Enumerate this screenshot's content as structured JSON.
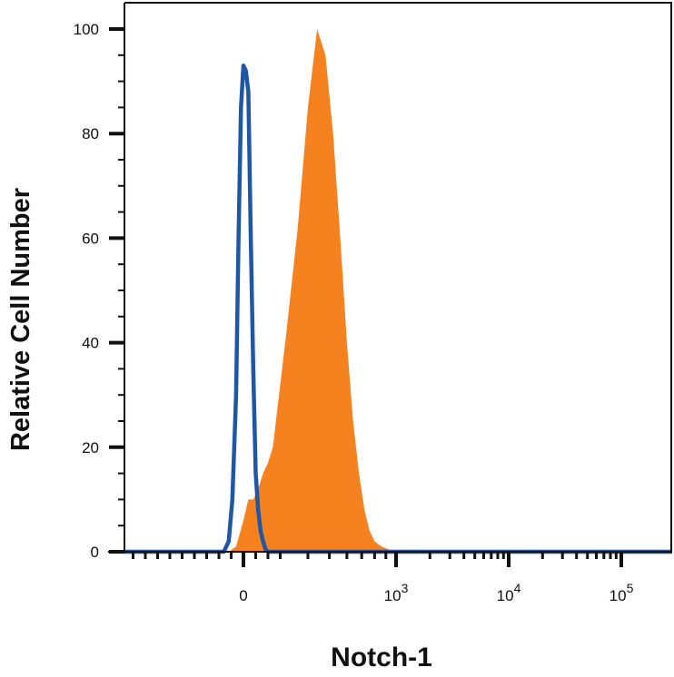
{
  "chart_data": {
    "type": "area",
    "xlabel": "Notch-1",
    "ylabel": "Relative Cell Number",
    "ylim": [
      0,
      100
    ],
    "x_scale": "biexponential",
    "x_ticks": [
      {
        "value": 0,
        "label": "0",
        "exp": ""
      },
      {
        "value": 1000,
        "label": "10",
        "exp": "3"
      },
      {
        "value": 10000,
        "label": "10",
        "exp": "4"
      },
      {
        "value": 100000,
        "label": "10",
        "exp": "5"
      }
    ],
    "y_ticks": [
      0,
      20,
      40,
      60,
      80,
      100
    ],
    "grid": false,
    "legend": "none",
    "colors": {
      "filled": "#F5821F",
      "outline": "#1F57A7",
      "axis": "#111111"
    },
    "series": [
      {
        "style": "filled",
        "x": [
          -120,
          -60,
          0,
          40,
          80,
          120,
          160,
          200,
          240,
          280,
          320,
          360,
          400,
          440,
          480,
          520,
          560,
          600,
          640,
          680,
          720,
          760,
          800,
          860,
          920,
          1000
        ],
        "y": [
          0,
          1,
          6,
          10,
          10,
          12,
          15,
          17,
          20,
          28,
          42,
          62,
          85,
          100,
          95,
          80,
          60,
          40,
          25,
          15,
          8,
          4,
          2,
          1,
          0.5,
          0
        ]
      },
      {
        "style": "outline",
        "x": [
          -160,
          -120,
          -90,
          -60,
          -40,
          -20,
          0,
          20,
          40,
          60,
          80,
          100,
          120,
          140,
          160,
          180,
          200
        ],
        "y": [
          0,
          2,
          10,
          30,
          60,
          85,
          93,
          92,
          88,
          60,
          35,
          15,
          8,
          4,
          2,
          0.5,
          0
        ]
      }
    ]
  }
}
